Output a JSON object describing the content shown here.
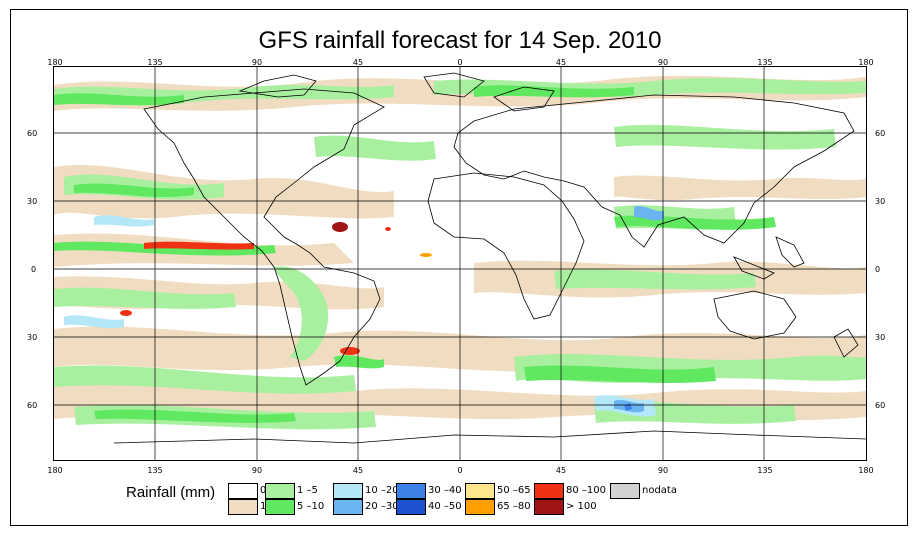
{
  "title": "GFS rainfall forecast for 14 Sep. 2010",
  "axes": {
    "lon_labels": [
      "180",
      "135",
      "90",
      "45",
      "0",
      "45",
      "90",
      "135",
      "180"
    ],
    "lat_labels": [
      "60",
      "30",
      "0",
      "30",
      "60"
    ]
  },
  "legend": {
    "title": "Rainfall (mm)",
    "items": [
      {
        "label": "0",
        "color": "#ffffff"
      },
      {
        "label": "1",
        "color": "#f0dcc0"
      },
      {
        "label": "1 –5",
        "color": "#a8f0a0"
      },
      {
        "label": "5 –10",
        "color": "#5fe860"
      },
      {
        "label": "10 –20",
        "color": "#b4e8f8"
      },
      {
        "label": "20 –30",
        "color": "#6ab4f0"
      },
      {
        "label": "30 –40",
        "color": "#3c82e6"
      },
      {
        "label": "40 –50",
        "color": "#1e50d2"
      },
      {
        "label": "50 –65",
        "color": "#ffe68c"
      },
      {
        "label": "65 –80",
        "color": "#ffa000"
      },
      {
        "label": "80 –100",
        "color": "#f03214"
      },
      {
        "label": "> 100",
        "color": "#a01414"
      },
      {
        "label": "nodata",
        "color": "#d2d2d2"
      }
    ]
  }
}
